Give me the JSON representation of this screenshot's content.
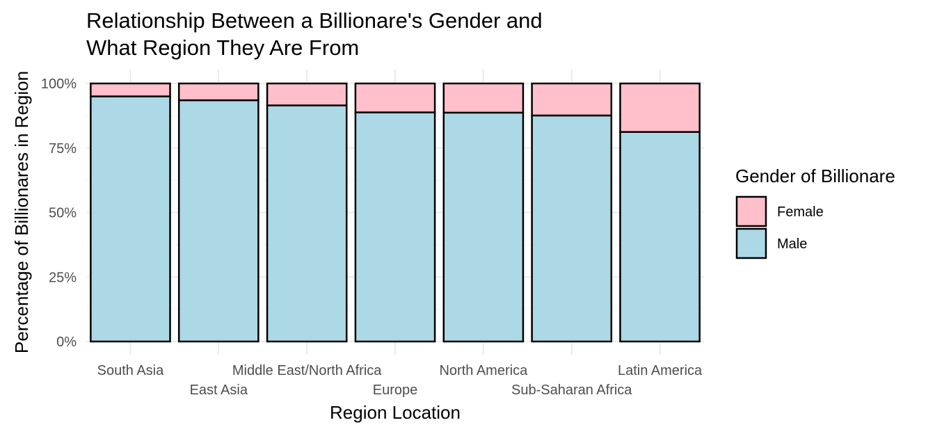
{
  "chart_data": {
    "type": "bar",
    "stacked": true,
    "position": "fill",
    "title": "Relationship Between a Billionare's Gender and What Region They Are From",
    "title_lines": [
      "Relationship Between a Billionare's Gender and",
      "What Region They Are From"
    ],
    "xlabel": "Region Location",
    "ylabel": "Percentage of Billionares in Region",
    "ylim": [
      0,
      1
    ],
    "y_ticks": [
      0,
      0.25,
      0.5,
      0.75,
      1
    ],
    "y_tick_labels": [
      "0%",
      "25%",
      "50%",
      "75%",
      "100%"
    ],
    "categories": [
      "South Asia",
      "East Asia",
      "Middle East/North Africa",
      "Europe",
      "North America",
      "Sub-Saharan Africa",
      "Latin America"
    ],
    "category_label_row": [
      0,
      1,
      0,
      1,
      0,
      1,
      0
    ],
    "series": [
      {
        "name": "Male",
        "color": "#add8e6",
        "values": [
          0.95,
          0.935,
          0.915,
          0.888,
          0.887,
          0.876,
          0.812
        ]
      },
      {
        "name": "Female",
        "color": "#ffc0cb",
        "values": [
          0.05,
          0.065,
          0.085,
          0.112,
          0.113,
          0.124,
          0.188
        ]
      }
    ],
    "grid": true,
    "legend": {
      "title": "Gender of Billionare",
      "placement": "right",
      "entries": [
        {
          "label": "Female",
          "color": "#ffc0cb"
        },
        {
          "label": "Male",
          "color": "#add8e6"
        }
      ]
    }
  }
}
